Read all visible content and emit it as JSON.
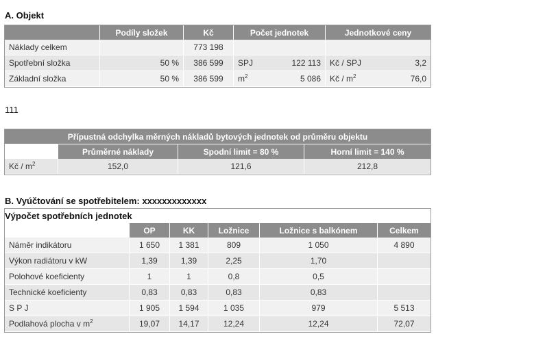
{
  "sectionA": {
    "title": "A. Objekt",
    "headers": [
      "",
      "Podíly složek",
      "Kč",
      "Počet jednotek",
      "Jednotkové ceny"
    ],
    "rows": [
      {
        "label": "Náklady celkem",
        "share": "",
        "kc": "773 198",
        "unit": "",
        "count": "",
        "price_unit": "",
        "price": ""
      },
      {
        "label": "Spotřební složka",
        "share": "50 %",
        "kc": "386 599",
        "unit": "SPJ",
        "count": "122 113",
        "price_unit": "Kč / SPJ",
        "price": "3,2"
      },
      {
        "label": "Základní složka",
        "share": "50 %",
        "kc": "386 599",
        "unit": "m",
        "unit_sup": "2",
        "count": "5 086",
        "price_unit": "Kč / m",
        "price_unit_sup": "2",
        "price": "76,0"
      }
    ]
  },
  "standalone_text": "111",
  "deviation": {
    "title": "Přípustná odchylka měrných nákladů bytových jednotek od průměru objektu",
    "headers": [
      "",
      "Průměrné náklady",
      "Spodní limit = 80 %",
      "Horní limit = 140 %"
    ],
    "row": {
      "label": "Kč / m",
      "label_sup": "2",
      "avg": "152,0",
      "low": "121,6",
      "high": "212,8"
    }
  },
  "sectionB": {
    "title": "B. Vyúčtování se spotřebitelem: xxxxxxxxxxxxx",
    "caption": "Výpočet spotřebních jednotek",
    "headers": [
      "",
      "OP",
      "KK",
      "Ložnice",
      "Ložnice s balkónem",
      "Celkem"
    ],
    "rows": [
      {
        "label": "Náměr indikátoru",
        "op": "1 650",
        "kk": "1 381",
        "loznice": "809",
        "balkon": "1 050",
        "celkem": "4 890"
      },
      {
        "label": "Výkon radiátoru v kW",
        "op": "1,39",
        "kk": "1,39",
        "loznice": "2,25",
        "balkon": "1,70",
        "celkem": ""
      },
      {
        "label": "Polohové koeficienty",
        "op": "1",
        "kk": "1",
        "loznice": "0,8",
        "balkon": "0,5",
        "celkem": ""
      },
      {
        "label": "Technické koeficienty",
        "op": "0,83",
        "kk": "0,83",
        "loznice": "0,83",
        "balkon": "0,83",
        "celkem": ""
      },
      {
        "label": "S P J",
        "op": "1 905",
        "kk": "1 594",
        "loznice": "1 035",
        "balkon": "979",
        "celkem": "5 513"
      },
      {
        "label": "Podlahová plocha v m",
        "label_sup": "2",
        "op": "19,07",
        "kk": "14,17",
        "loznice": "12,24",
        "balkon": "12,24",
        "celkem": "72,07"
      }
    ]
  }
}
